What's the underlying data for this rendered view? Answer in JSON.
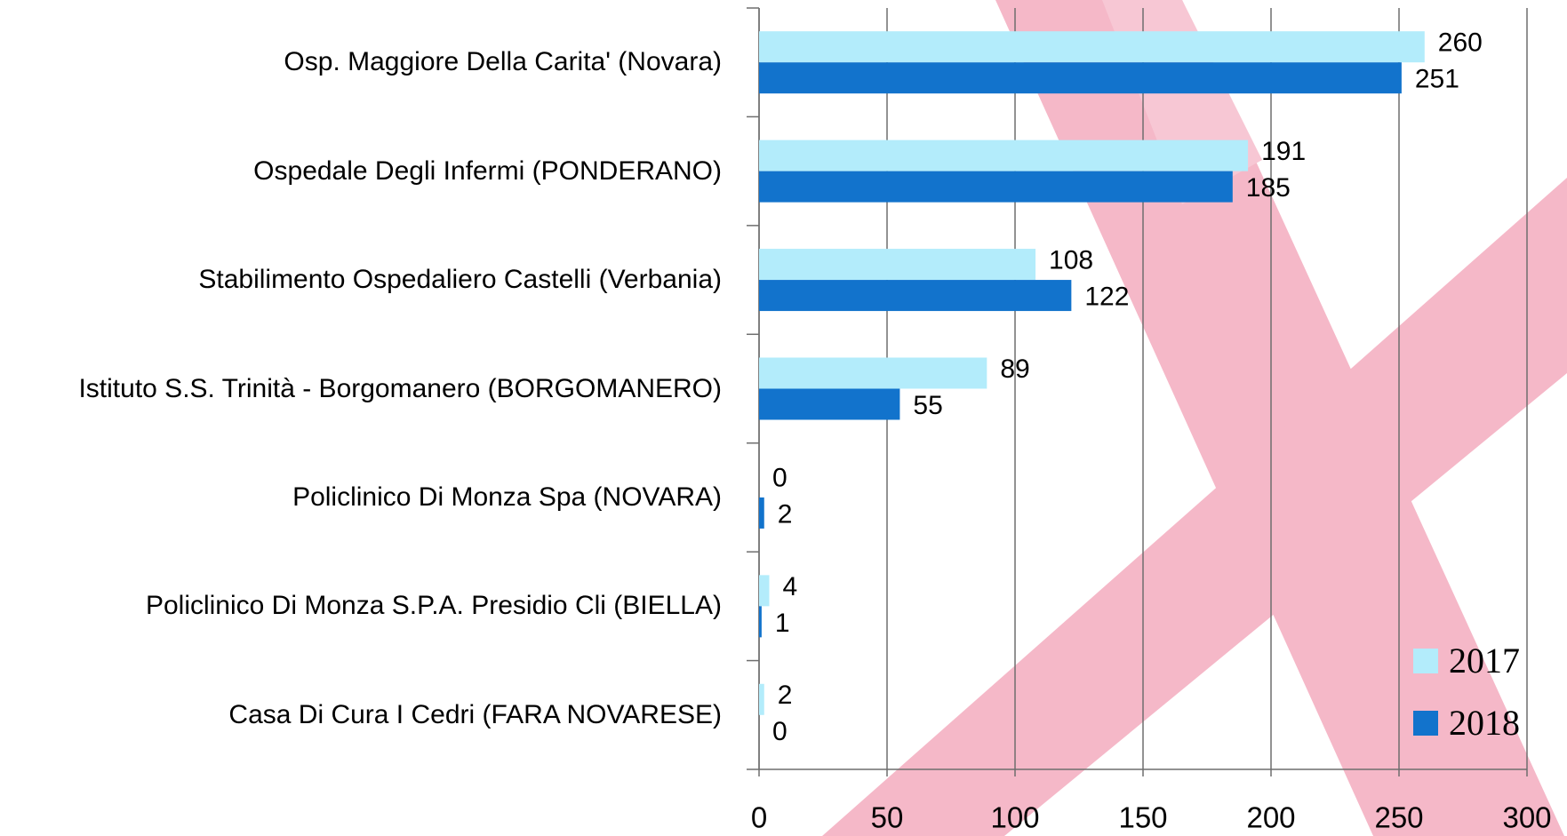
{
  "chart_data": {
    "type": "bar",
    "orientation": "horizontal",
    "categories": [
      "Osp. Maggiore Della Carita' (Novara)",
      "Ospedale Degli Infermi (PONDERANO)",
      "Stabilimento Ospedaliero Castelli (Verbania)",
      "Istituto S.S. Trinità - Borgomanero (BORGOMANERO)",
      "Policlinico Di Monza Spa (NOVARA)",
      "Policlinico Di Monza S.P.A. Presidio Cli (BIELLA)",
      "Casa Di Cura I Cedri (FARA NOVARESE)"
    ],
    "series": [
      {
        "name": "2017",
        "color": "#b3ecfb",
        "values": [
          260,
          191,
          108,
          89,
          0,
          4,
          2
        ]
      },
      {
        "name": "2018",
        "color": "#1273cc",
        "values": [
          251,
          185,
          122,
          55,
          2,
          1,
          0
        ]
      }
    ],
    "xlim": [
      0,
      300
    ],
    "xticks": [
      0,
      50,
      100,
      150,
      200,
      250,
      300
    ],
    "grid": true,
    "legend": "lower right"
  }
}
